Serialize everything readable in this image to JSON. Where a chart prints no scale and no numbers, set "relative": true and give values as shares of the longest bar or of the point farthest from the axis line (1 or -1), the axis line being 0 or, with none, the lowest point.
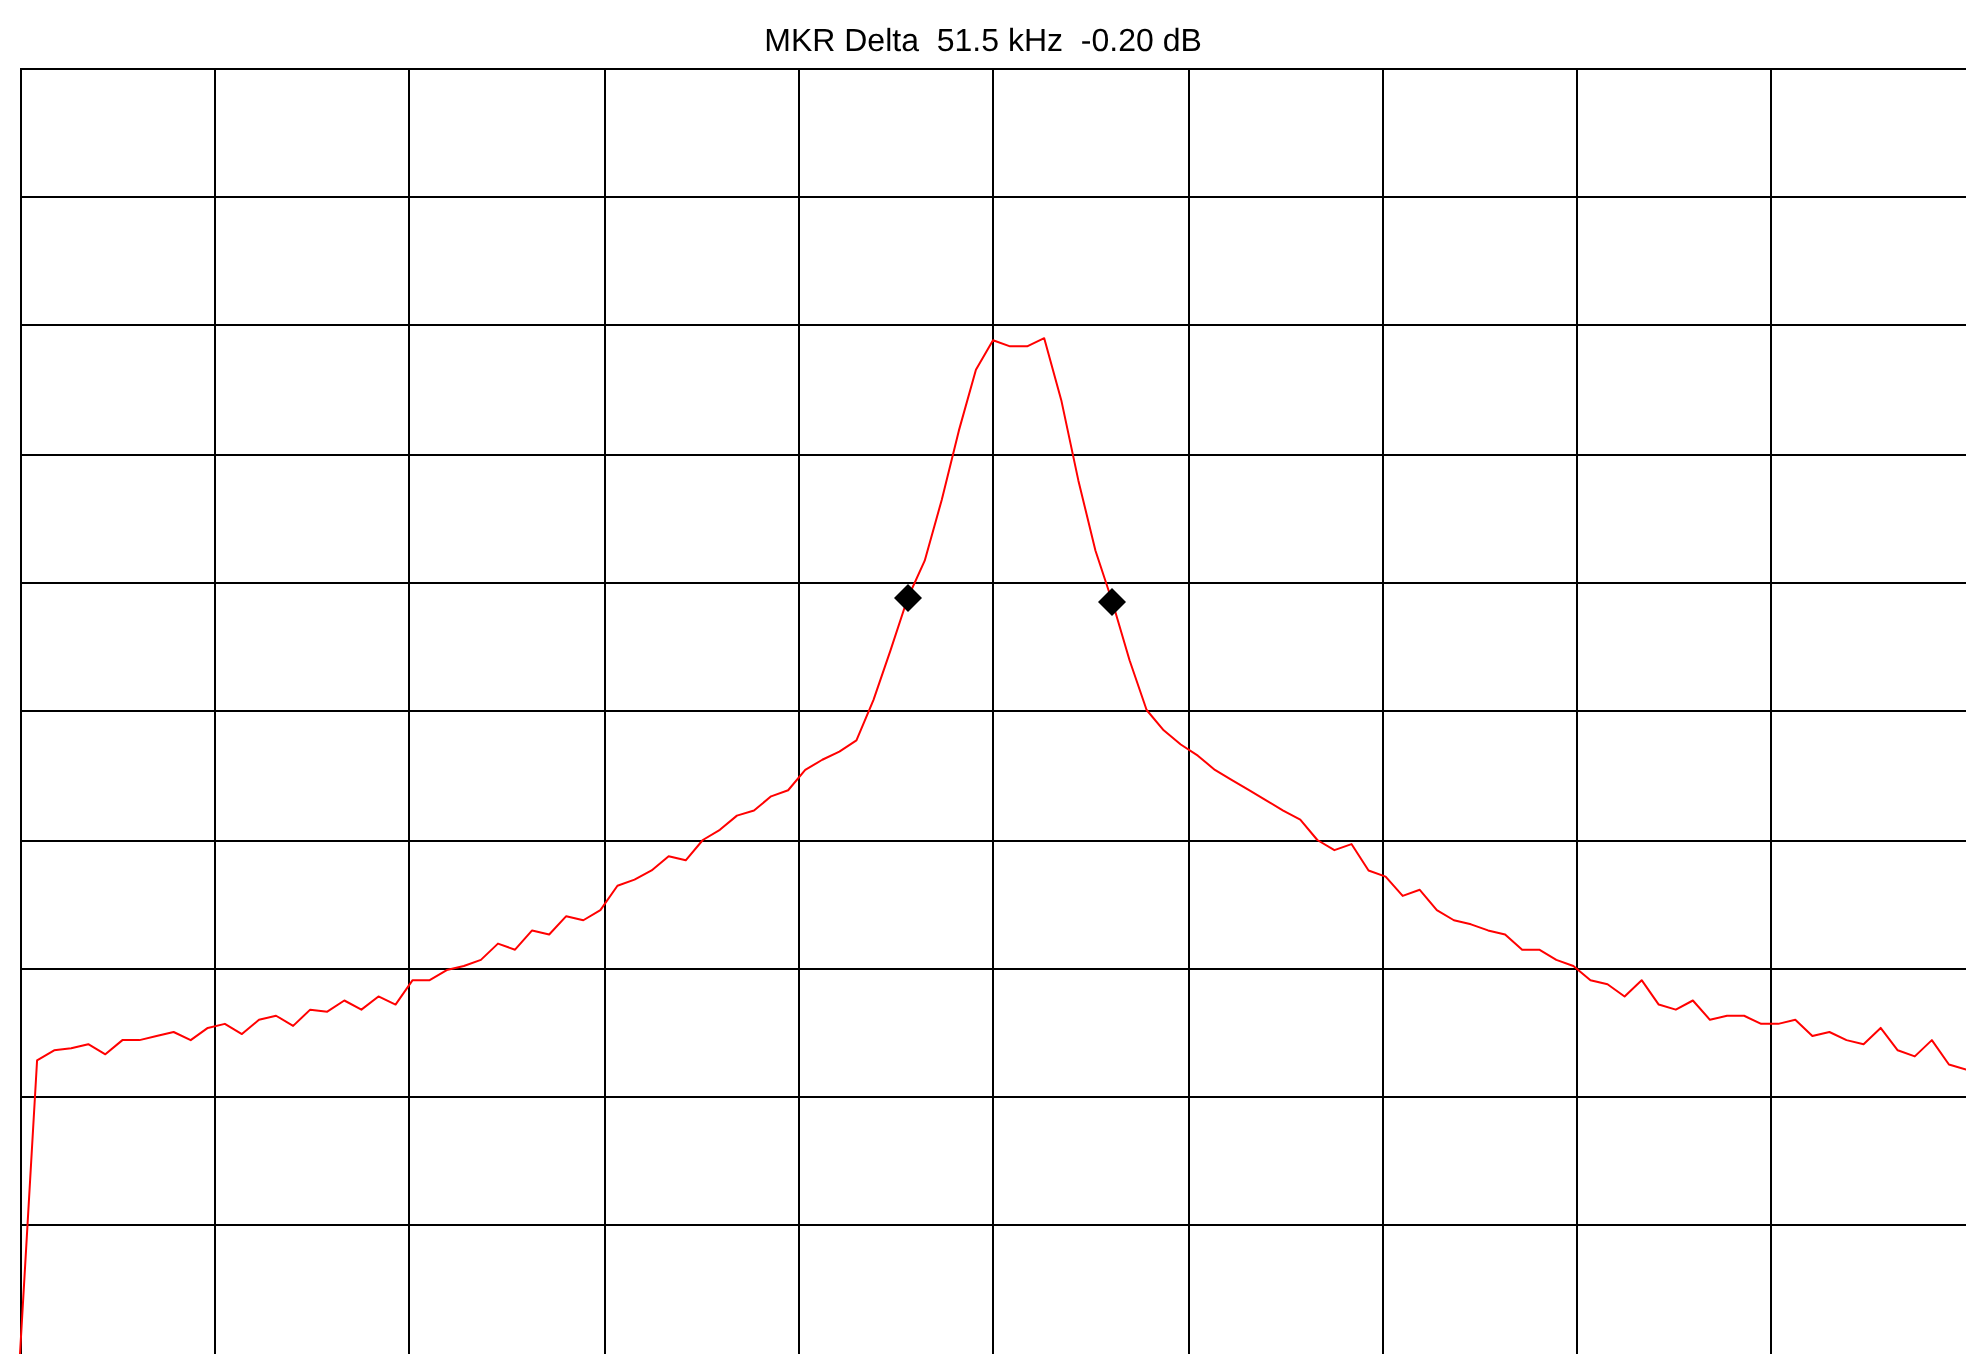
{
  "chart_data": {
    "type": "line",
    "title": "MKR Delta  51.5 kHz  -0.20 dB",
    "relative": true,
    "grid": true,
    "categories": [
      null,
      null,
      null,
      null,
      null,
      null,
      null,
      null,
      null,
      null,
      null,
      null,
      null,
      null,
      null,
      null,
      null,
      null,
      null,
      null,
      null,
      null,
      null,
      null,
      null,
      null,
      null,
      null,
      null,
      null,
      null,
      null,
      null,
      null,
      null,
      null,
      null,
      null,
      null,
      null,
      null,
      null,
      null,
      null,
      null,
      null,
      null,
      null,
      null,
      null,
      null,
      null,
      null,
      null,
      null,
      null,
      null,
      null,
      null,
      null,
      null,
      null,
      null,
      null,
      null,
      null,
      null,
      null,
      null,
      null,
      null,
      null,
      null,
      null,
      null,
      null,
      null,
      null,
      null,
      null,
      null,
      null,
      null,
      null,
      null,
      null,
      null,
      null,
      null,
      null,
      null,
      null,
      null,
      null,
      null,
      null,
      null,
      null,
      null,
      null,
      null,
      null,
      null,
      null,
      null,
      null,
      null,
      null,
      null,
      null,
      null,
      null,
      null,
      null,
      null
    ],
    "series": [
      {
        "color": "#ff0000",
        "values": [
          0,
          0.289,
          0.299,
          0.301,
          0.305,
          0.295,
          0.309,
          0.309,
          0.313,
          0.317,
          0.309,
          0.321,
          0.325,
          0.315,
          0.329,
          0.333,
          0.323,
          0.339,
          0.337,
          0.348,
          0.339,
          0.352,
          0.344,
          0.368,
          0.368,
          0.378,
          0.382,
          0.388,
          0.404,
          0.398,
          0.417,
          0.413,
          0.431,
          0.427,
          0.437,
          0.461,
          0.467,
          0.476,
          0.49,
          0.486,
          0.506,
          0.516,
          0.53,
          0.535,
          0.549,
          0.555,
          0.575,
          0.585,
          0.593,
          0.604,
          0.644,
          0.693,
          0.744,
          0.781,
          0.841,
          0.909,
          0.969,
          0.998,
          0.992,
          0.992,
          1,
          0.939,
          0.86,
          0.791,
          0.74,
          0.683,
          0.634,
          0.614,
          0.6,
          0.589,
          0.575,
          0.565,
          0.555,
          0.545,
          0.535,
          0.526,
          0.506,
          0.496,
          0.502,
          0.476,
          0.47,
          0.451,
          0.457,
          0.437,
          0.427,
          0.423,
          0.417,
          0.413,
          0.398,
          0.398,
          0.388,
          0.382,
          0.368,
          0.364,
          0.352,
          0.368,
          0.344,
          0.339,
          0.348,
          0.329,
          0.333,
          0.333,
          0.325,
          0.325,
          0.329,
          0.313,
          0.317,
          0.309,
          0.305,
          0.321,
          0.299,
          0.293,
          0.309,
          0.285,
          0.28
        ]
      }
    ]
  }
}
